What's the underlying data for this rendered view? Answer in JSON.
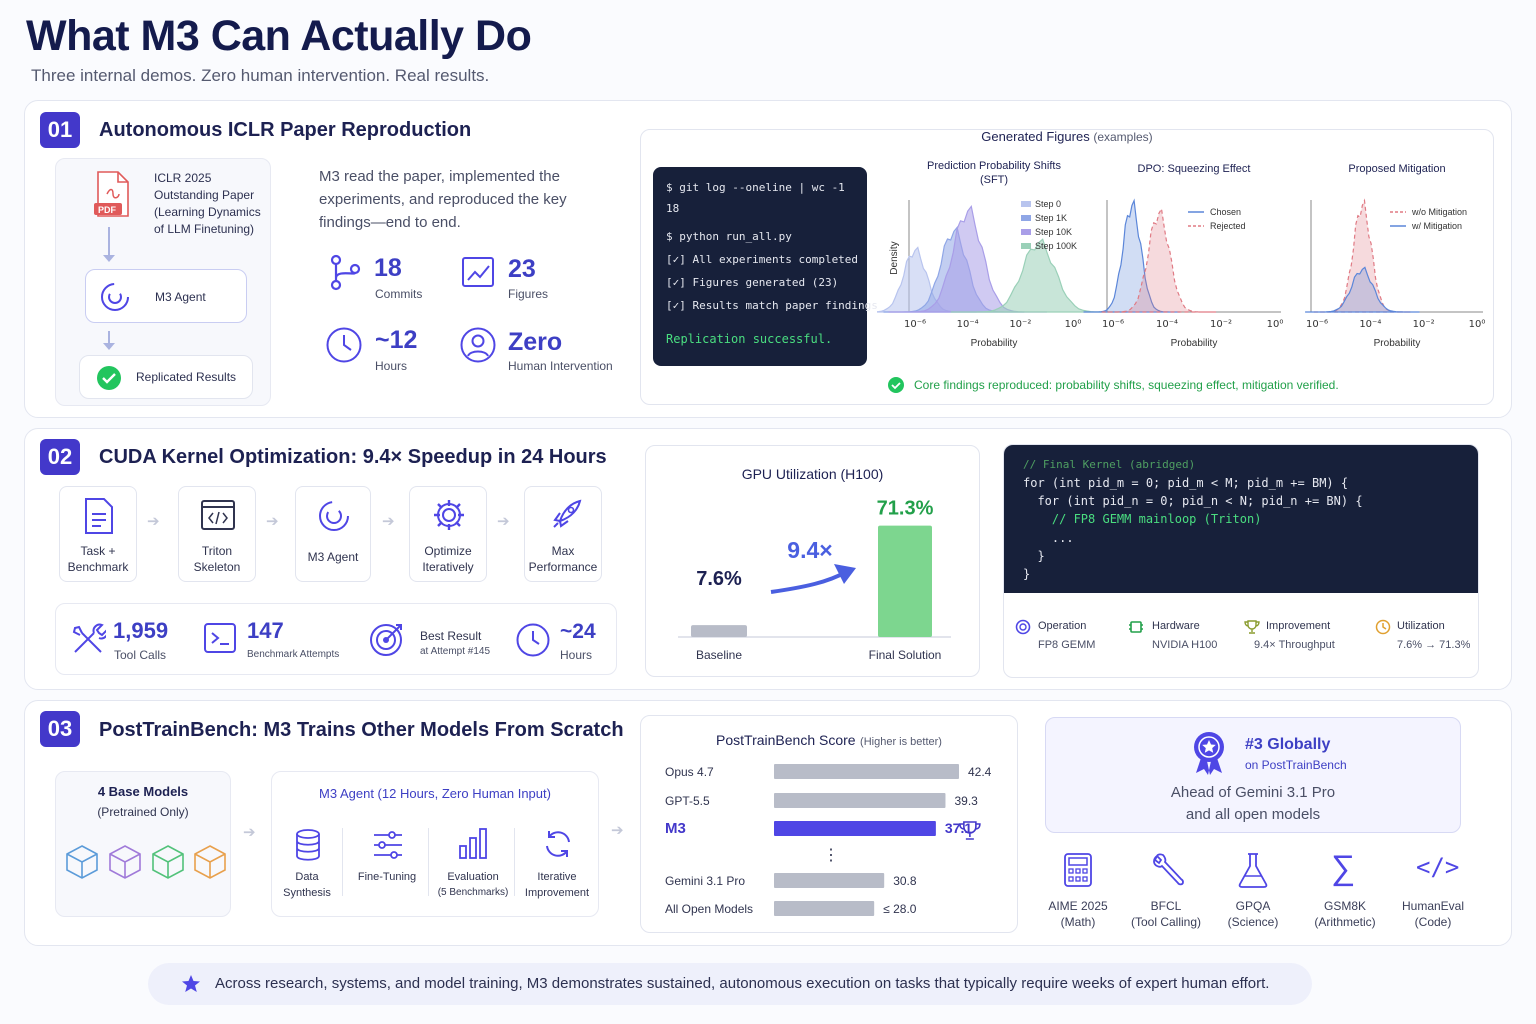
{
  "header": {
    "title": "What M3 Can Actually Do",
    "subtitle": "Three internal demos. Zero human intervention. Real results."
  },
  "s1": {
    "num": "01",
    "title": "Autonomous ICLR Paper Reproduction",
    "paper": {
      "badge": "PDF",
      "l1": "ICLR 2025",
      "l2": "Outstanding Paper",
      "l3": "(Learning Dynamics",
      "l4": "of LLM Finetuning)"
    },
    "agent": "M3 Agent",
    "result": "Replicated Results",
    "desc": [
      "M3 read the paper, implemented the",
      "experiments, and reproduced the key",
      "findings—end to end."
    ],
    "stats": [
      {
        "value": "18",
        "label": "Commits"
      },
      {
        "value": "23",
        "label": "Figures"
      },
      {
        "value": "~12",
        "label": "Hours"
      },
      {
        "value": "Zero",
        "label": "Human Intervention"
      }
    ],
    "terminal": [
      "$ git log --oneline | wc -1",
      "18",
      "$ python run_all.py",
      "[✓] All experiments completed",
      "[✓] Figures generated (23)",
      "[✓] Results match paper findings",
      "Replication successful."
    ],
    "fig_title": "Generated Figures",
    "fig_title_note": "(examples)",
    "footer": "Core findings reproduced: probability shifts, squeezing effect, mitigation verified."
  },
  "chart_data": [
    {
      "type": "area",
      "title": "Prediction Probability Shifts (SFT)",
      "xlabel": "Probability",
      "ylabel": "Density",
      "xscale": "log",
      "x_ticks": [
        "10⁻⁶",
        "10⁻⁴",
        "10⁻²",
        "10⁰"
      ],
      "series": [
        {
          "name": "Step 0",
          "peak_x": 1e-06,
          "peak": 0.55,
          "color": "#b8c4ee"
        },
        {
          "name": "Step 1K",
          "peak_x": 3e-05,
          "peak": 0.72,
          "color": "#8fa6e6"
        },
        {
          "name": "Step 10K",
          "peak_x": 0.0001,
          "peak": 0.9,
          "color": "#a99ee8"
        },
        {
          "name": "Step 100K",
          "peak_x": 0.05,
          "peak": 0.62,
          "color": "#9ad0b8"
        }
      ],
      "legend": "top-right"
    },
    {
      "type": "area",
      "title": "DPO: Squeezing Effect",
      "xlabel": "Probability",
      "xscale": "log",
      "x_ticks": [
        "10⁻⁶",
        "10⁻⁴",
        "10⁻²",
        "10⁰"
      ],
      "series": [
        {
          "name": "Chosen",
          "peak_x": 5e-06,
          "peak": 0.95,
          "color": "#5b86d9",
          "style": "solid"
        },
        {
          "name": "Rejected",
          "peak_x": 5e-05,
          "peak": 0.88,
          "color": "#e07a84",
          "style": "dashed"
        }
      ],
      "legend": "top-right"
    },
    {
      "type": "area",
      "title": "Proposed Mitigation",
      "xlabel": "Probability",
      "xscale": "log",
      "x_ticks": [
        "10⁻⁶",
        "10⁻⁴",
        "10⁻²",
        "10⁰"
      ],
      "series": [
        {
          "name": "w/o Mitigation",
          "peak_x": 5e-05,
          "peak": 0.95,
          "color": "#e07a84",
          "style": "dashed"
        },
        {
          "name": "w/ Mitigation",
          "peak_x": 5e-05,
          "peak": 0.38,
          "color": "#5b86d9",
          "style": "solid"
        }
      ],
      "legend": "top-right"
    },
    {
      "type": "bar",
      "title": "GPU Utilization (H100)",
      "categories": [
        "Baseline",
        "Final Solution"
      ],
      "values": [
        7.6,
        71.3
      ],
      "unit": "%",
      "annotation": "9.4×",
      "ylim": [
        0,
        80
      ]
    },
    {
      "type": "bar",
      "orientation": "horizontal",
      "title": "PostTrainBench Score",
      "subtitle": "(Higher is better)",
      "categories": [
        "Opus 4.7",
        "GPT-5.5",
        "M3",
        "Gemini 3.1 Pro",
        "All Open Models"
      ],
      "values": [
        42.4,
        39.3,
        37.1,
        30.8,
        28.0
      ],
      "value_labels": [
        "42.4",
        "39.3",
        "37.1",
        "30.8",
        "≤ 28.0"
      ],
      "xlim": [
        0,
        45
      ],
      "highlight": "M3"
    }
  ],
  "s2": {
    "num": "02",
    "title": "CUDA Kernel Optimization: 9.4× Speedup in 24 Hours",
    "steps": [
      [
        "Task +",
        "Benchmark"
      ],
      [
        "Triton",
        "Skeleton"
      ],
      [
        "M3 Agent",
        ""
      ],
      [
        "Optimize",
        "Iteratively"
      ],
      [
        "Max",
        "Performance"
      ]
    ],
    "stats": [
      {
        "value": "1,959",
        "label": "Tool Calls"
      },
      {
        "value": "147",
        "label": "Benchmark Attempts"
      },
      {
        "value": "Best Result",
        "label": "at Attempt #145"
      },
      {
        "value": "~24",
        "label": "Hours"
      }
    ],
    "code": [
      "// Final Kernel (abridged)",
      "for (int pid_m = 0; pid_m < M; pid_m += BM) {",
      "  for (int pid_n = 0; pid_n < N; pid_n += BN) {",
      "    // FP8 GEMM mainloop (Triton)",
      "    ...",
      "  }",
      "}"
    ],
    "meta": [
      {
        "k": "Operation",
        "v": "FP8 GEMM"
      },
      {
        "k": "Hardware",
        "v": "NVIDIA H100"
      },
      {
        "k": "Improvement",
        "v": "9.4× Throughput"
      },
      {
        "k": "Utilization",
        "v": "7.6% → 71.3%"
      }
    ]
  },
  "s3": {
    "num": "03",
    "title": "PostTrainBench: M3 Trains Other Models From Scratch",
    "base": {
      "title": "4 Base Models",
      "sub": "(Pretrained Only)"
    },
    "agent_title": "M3 Agent (12 Hours, Zero Human Input)",
    "pipeline": [
      [
        "Data",
        "Synthesis"
      ],
      [
        "Fine-Tuning",
        ""
      ],
      [
        "Evaluation",
        "(5 Benchmarks)"
      ],
      [
        "Iterative",
        "Improvement"
      ]
    ],
    "rank": {
      "title": "#3 Globally",
      "sub": "on PostTrainBench",
      "l1": "Ahead of Gemini 3.1 Pro",
      "l2": "and all open models"
    },
    "benchmarks": [
      [
        "AIME 2025",
        "(Math)"
      ],
      [
        "BFCL",
        "(Tool Calling)"
      ],
      [
        "GPQA",
        "(Science)"
      ],
      [
        "GSM8K",
        "(Arithmetic)"
      ],
      [
        "HumanEval",
        "(Code)"
      ]
    ]
  },
  "footer": "Across research, systems, and model training, M3 demonstrates sustained, autonomous execution on tasks that typically require weeks of expert human effort.",
  "colors": {
    "accent": "#4338ca",
    "success": "#22c55e",
    "bar_gray": "#b8bcc8",
    "m3_bar": "#4f46e5"
  }
}
